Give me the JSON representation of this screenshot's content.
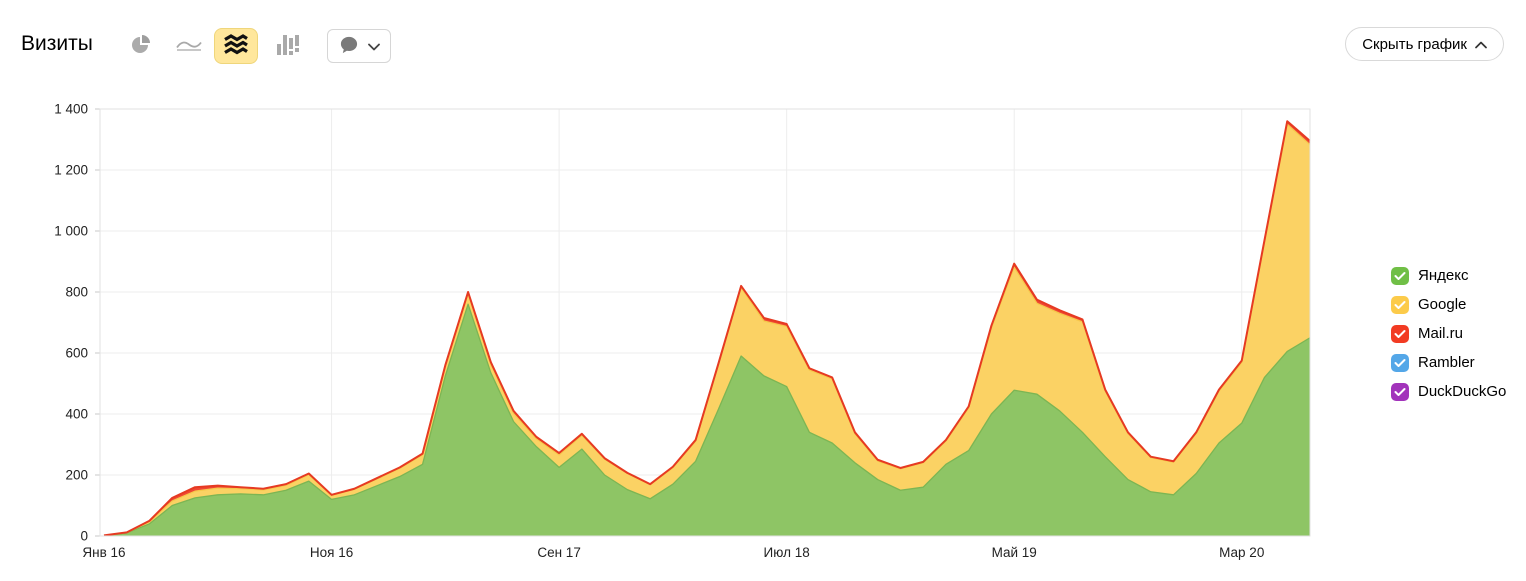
{
  "header": {
    "title": "Визиты",
    "toggle_label": "Скрыть график",
    "toggle_icon": "chevron-up-icon"
  },
  "toolbar": {
    "chart_type_buttons": [
      {
        "icon": "pie-chart-icon",
        "selected": false
      },
      {
        "icon": "line-chart-icon",
        "selected": false
      },
      {
        "icon": "stacked-area-chart-icon",
        "selected": true
      },
      {
        "icon": "bar-chart-icon",
        "selected": false
      }
    ],
    "selected_background": "#ffe79c",
    "annotations_button": {
      "icons": [
        "speech-bubble-icon",
        "chevron-down-icon"
      ]
    }
  },
  "legend": {
    "position": "right",
    "items": [
      {
        "label": "Яндекс",
        "color": "#70bf46",
        "checked": true
      },
      {
        "label": "Google",
        "color": "#fccb4a",
        "checked": true
      },
      {
        "label": "Mail.ru",
        "color": "#f23b23",
        "checked": true
      },
      {
        "label": "Rambler",
        "color": "#54a7e8",
        "checked": true
      },
      {
        "label": "DuckDuckGo",
        "color": "#a233bb",
        "checked": true
      }
    ]
  },
  "chart_data": {
    "type": "area",
    "stacked": true,
    "title": "Визиты",
    "grid": true,
    "legend_position": "right",
    "ylim": [
      0,
      1400
    ],
    "y_ticks": [
      0,
      200,
      400,
      600,
      800,
      1000,
      1200,
      1400
    ],
    "y_tick_labels": [
      "0",
      "200",
      "400",
      "600",
      "800",
      "1 000",
      "1 200",
      "1 400"
    ],
    "x": [
      "2016-01",
      "2016-02",
      "2016-03",
      "2016-04",
      "2016-05",
      "2016-06",
      "2016-07",
      "2016-08",
      "2016-09",
      "2016-10",
      "2016-11",
      "2016-12",
      "2017-01",
      "2017-02",
      "2017-03",
      "2017-04",
      "2017-05",
      "2017-06",
      "2017-07",
      "2017-08",
      "2017-09",
      "2017-10",
      "2017-11",
      "2017-12",
      "2018-01",
      "2018-02",
      "2018-03",
      "2018-04",
      "2018-05",
      "2018-06",
      "2018-07",
      "2018-08",
      "2018-09",
      "2018-10",
      "2018-11",
      "2018-12",
      "2019-01",
      "2019-02",
      "2019-03",
      "2019-04",
      "2019-05",
      "2019-06",
      "2019-07",
      "2019-08",
      "2019-09",
      "2019-10",
      "2019-11",
      "2019-12",
      "2020-01",
      "2020-02",
      "2020-03",
      "2020-04",
      "2020-05",
      "2020-06"
    ],
    "x_tick_labels": [
      {
        "index": 0,
        "label": "Янв 16"
      },
      {
        "index": 10,
        "label": "Ноя 16"
      },
      {
        "index": 20,
        "label": "Сен 17"
      },
      {
        "index": 30,
        "label": "Июл 18"
      },
      {
        "index": 40,
        "label": "Май 19"
      },
      {
        "index": 50,
        "label": "Мар 20"
      }
    ],
    "series": [
      {
        "name": "Яндекс",
        "color": "#70bf46",
        "fill": "#8ec565",
        "stroke": "#7cb553",
        "values": [
          2,
          10,
          40,
          100,
          125,
          135,
          138,
          135,
          150,
          180,
          120,
          135,
          165,
          195,
          235,
          525,
          760,
          535,
          375,
          293,
          225,
          285,
          200,
          152,
          122,
          170,
          245,
          415,
          590,
          525,
          490,
          340,
          305,
          240,
          185,
          150,
          160,
          235,
          280,
          400,
          478,
          465,
          410,
          340,
          260,
          185,
          145,
          135,
          205,
          305,
          370,
          520,
          605,
          650
        ]
      },
      {
        "name": "Google",
        "color": "#fccb4a",
        "fill": "#fbd264",
        "stroke": "#f6c84b",
        "values": [
          0,
          1,
          7,
          15,
          22,
          22,
          17,
          16,
          16,
          21,
          13,
          18,
          22,
          27,
          31,
          31,
          34,
          28,
          27,
          26,
          41,
          45,
          52,
          53,
          46,
          54,
          66,
          145,
          224,
          180,
          197,
          204,
          210,
          95,
          61,
          70,
          80,
          76,
          140,
          282,
          403,
          298,
          320,
          362,
          215,
          151,
          112,
          107,
          131,
          170,
          199,
          442,
          745,
          633
        ]
      },
      {
        "name": "Mail.ru",
        "color": "#f23b23",
        "fill": "#ef4733",
        "stroke": "#e63a22",
        "values": [
          0,
          1,
          3,
          10,
          13,
          8,
          5,
          4,
          4,
          4,
          2,
          2,
          3,
          3,
          4,
          4,
          6,
          7,
          8,
          6,
          6,
          5,
          3,
          2,
          2,
          3,
          4,
          5,
          6,
          10,
          8,
          6,
          5,
          5,
          4,
          3,
          3,
          4,
          5,
          8,
          12,
          12,
          10,
          8,
          5,
          4,
          3,
          3,
          4,
          5,
          6,
          8,
          10,
          12
        ]
      },
      {
        "name": "Rambler",
        "color": "#54a7e8",
        "fill": "#6fb3ec",
        "stroke": "#54a7e8",
        "values": [
          1,
          1,
          1,
          1,
          1,
          1,
          1,
          1,
          1,
          1,
          1,
          1,
          1,
          1,
          1,
          1,
          1,
          1,
          1,
          1,
          1,
          1,
          1,
          1,
          1,
          1,
          1,
          1,
          1,
          1,
          1,
          1,
          1,
          1,
          1,
          1,
          1,
          1,
          1,
          1,
          1,
          1,
          1,
          1,
          1,
          1,
          1,
          1,
          1,
          1,
          1,
          1,
          1,
          1
        ]
      },
      {
        "name": "DuckDuckGo",
        "color": "#a233bb",
        "fill": "#b052c6",
        "stroke": "#a233bb",
        "values": [
          0,
          0,
          0,
          0,
          0,
          0,
          0,
          0,
          0,
          0,
          0,
          0,
          0,
          0,
          0,
          0,
          0,
          0,
          0,
          0,
          0,
          0,
          0,
          0,
          0,
          0,
          0,
          0,
          0,
          0,
          0,
          0,
          0,
          0,
          0,
          0,
          0,
          0,
          0,
          0,
          0,
          0,
          0,
          0,
          0,
          0,
          0,
          0,
          0,
          0,
          0,
          0,
          0,
          0
        ]
      }
    ]
  }
}
